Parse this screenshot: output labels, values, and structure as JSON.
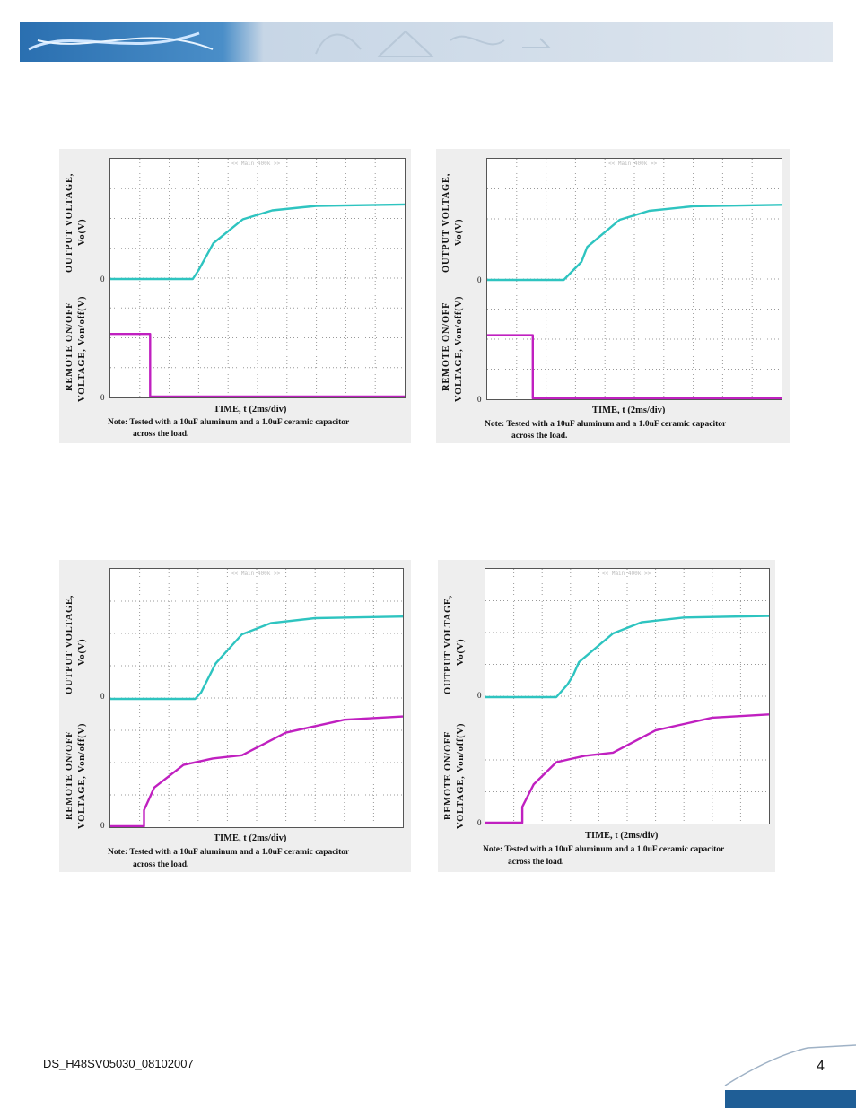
{
  "header": {
    "banner_image": "wireframe-banner"
  },
  "figures": [
    {
      "x_label": "TIME, t (2ms/div)",
      "y_label_top_1": "OUTPUT VOLTAGE,",
      "y_label_top_2": "Vo(V)",
      "y_label_bottom_1": "REMOTE ON/OFF",
      "y_label_bottom_2": "VOLTAGE, Von/off(V)",
      "zero_top": "0",
      "zero_bottom": "0",
      "note_line1": "Note: Tested with a 10uF aluminum and a 1.0uF ceramic capacitor",
      "note_line2": "across the load.",
      "watermark": "<< Main 400k >>"
    },
    {
      "x_label": "TIME, t (2ms/div)",
      "y_label_top_1": "OUTPUT VOLTAGE,",
      "y_label_top_2": "Vo(V)",
      "y_label_bottom_1": "REMOTE ON/OFF",
      "y_label_bottom_2": "VOLTAGE, Von/off(V)",
      "zero_top": "0",
      "zero_bottom": "0",
      "note_line1": "Note: Tested with a 10uF aluminum and a 1.0uF ceramic capacitor",
      "note_line2": "across the load.",
      "watermark": "<< Main 400k >>"
    },
    {
      "x_label": "TIME, t (2ms/div)",
      "y_label_top_1": "OUTPUT VOLTAGE,",
      "y_label_top_2": "Vo(V)",
      "y_label_bottom_1": "REMOTE ON/OFF",
      "y_label_bottom_2": "VOLTAGE, Von/off(V)",
      "zero_top": "0",
      "zero_bottom": "0",
      "note_line1": "Note: Tested with a 10uF aluminum and a 1.0uF ceramic capacitor",
      "note_line2": "across the load.",
      "watermark": "<< Main 400k >>"
    },
    {
      "x_label": "TIME, t (2ms/div)",
      "y_label_top_1": "OUTPUT VOLTAGE,",
      "y_label_top_2": "Vo(V)",
      "y_label_bottom_1": "REMOTE ON/OFF",
      "y_label_bottom_2": "VOLTAGE, Von/off(V)",
      "zero_top": "0",
      "zero_bottom": "0",
      "note_line1": "Note: Tested with a 10uF aluminum and a 1.0uF ceramic capacitor",
      "note_line2": "across the load.",
      "watermark": "<< Main 400k >>"
    }
  ],
  "chart_data": [
    {
      "type": "line",
      "x_unit": "div (2ms/div)",
      "xlim": [
        0,
        10
      ],
      "series": [
        {
          "color": "#2ec4c0",
          "x": [
            0,
            2.8,
            3.0,
            3.5,
            4.5,
            5.5,
            7,
            10
          ],
          "y": [
            0,
            0,
            0.3,
            1.2,
            2.0,
            2.3,
            2.45,
            2.5
          ]
        },
        {
          "color": "#c020c0",
          "x": [
            0,
            1.35,
            1.35,
            10
          ],
          "y": [
            2.1,
            2.1,
            0,
            0
          ]
        }
      ]
    },
    {
      "type": "line",
      "x_unit": "div (2ms/div)",
      "xlim": [
        0,
        10
      ],
      "series": [
        {
          "color": "#2ec4c0",
          "x": [
            0,
            2.6,
            3.0,
            3.2,
            3.4,
            4.5,
            5.5,
            7,
            10
          ],
          "y": [
            0,
            0,
            0.4,
            0.6,
            1.1,
            2.0,
            2.3,
            2.45,
            2.5
          ]
        },
        {
          "color": "#c020c0",
          "x": [
            0,
            1.55,
            1.55,
            10
          ],
          "y": [
            2.1,
            2.1,
            0,
            0
          ]
        }
      ]
    },
    {
      "type": "line",
      "x_unit": "div (2ms/div)",
      "xlim": [
        0,
        10
      ],
      "series": [
        {
          "color": "#2ec4c0",
          "x": [
            0,
            2.9,
            3.1,
            3.6,
            4.5,
            5.5,
            7,
            10
          ],
          "y": [
            0,
            0,
            0.2,
            1.1,
            2.0,
            2.35,
            2.5,
            2.55
          ]
        },
        {
          "color": "#c020c0",
          "x": [
            0,
            1.15,
            1.15,
            1.5,
            2.5,
            3.5,
            4.5,
            6,
            8,
            10
          ],
          "y": [
            0,
            0,
            0.5,
            1.2,
            1.9,
            2.1,
            2.2,
            2.9,
            3.3,
            3.4
          ]
        }
      ]
    },
    {
      "type": "line",
      "x_unit": "div (2ms/div)",
      "xlim": [
        0,
        10
      ],
      "series": [
        {
          "color": "#2ec4c0",
          "x": [
            0,
            2.5,
            2.9,
            3.1,
            3.3,
            4.5,
            5.5,
            7,
            10
          ],
          "y": [
            0,
            0,
            0.4,
            0.7,
            1.1,
            2.0,
            2.35,
            2.5,
            2.55
          ]
        },
        {
          "color": "#c020c0",
          "x": [
            0,
            1.3,
            1.3,
            1.7,
            2.5,
            3.5,
            4.5,
            6,
            8,
            10
          ],
          "y": [
            0,
            0,
            0.5,
            1.2,
            1.9,
            2.1,
            2.2,
            2.9,
            3.3,
            3.4
          ]
        }
      ]
    }
  ],
  "footer": {
    "doc_id": "DS_H48SV05030_08102007",
    "page_number": "4"
  }
}
